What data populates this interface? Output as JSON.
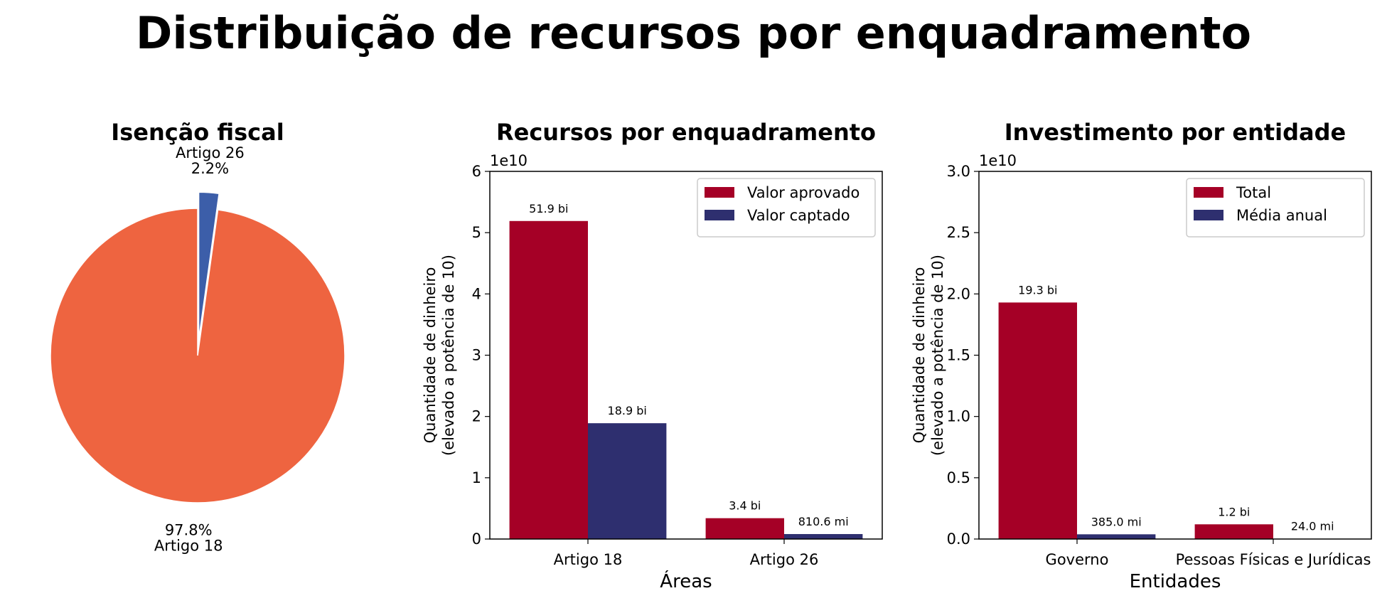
{
  "title": "Distribuição de recursos por enquadramento",
  "colors": {
    "pie_large": "#ee6440",
    "pie_small": "#3c5ea9",
    "series_red": "#a50026",
    "series_blue": "#2e2f6f"
  },
  "chart_data": [
    {
      "type": "pie",
      "title": "Isenção fiscal",
      "slices": [
        {
          "label": "Artigo 18",
          "value": 97.8,
          "pct_label": "97.8%",
          "color": "#ee6440"
        },
        {
          "label": "Artigo 26",
          "value": 2.2,
          "pct_label": "2.2%",
          "color": "#3c5ea9"
        }
      ]
    },
    {
      "type": "bar",
      "title": "Recursos por enquadramento",
      "xlabel": "Áreas",
      "ylabel": [
        "Quantidade de dinheiro",
        "(elevado a potência de 10)"
      ],
      "offset_label": "1e10",
      "categories": [
        "Artigo 18",
        "Artigo 26"
      ],
      "ylim": [
        0,
        6
      ],
      "yticks": [
        "0",
        "1",
        "2",
        "3",
        "4",
        "5",
        "6"
      ],
      "legend_position": "top-right",
      "series": [
        {
          "name": "Valor aprovado",
          "values": [
            5.19,
            0.34
          ],
          "labels": [
            "51.9 bi",
            "3.4 bi"
          ],
          "color": "#a50026"
        },
        {
          "name": "Valor captado",
          "values": [
            1.89,
            0.08106
          ],
          "labels": [
            "18.9 bi",
            "810.6 mi"
          ],
          "color": "#2e2f6f"
        }
      ]
    },
    {
      "type": "bar",
      "title": "Investimento por entidade",
      "xlabel": "Entidades",
      "ylabel": [
        "Quantidade de dinheiro",
        "(elevado a potência de 10)"
      ],
      "offset_label": "1e10",
      "categories": [
        "Governo",
        "Pessoas Físicas e Jurídicas"
      ],
      "ylim": [
        0,
        3
      ],
      "yticks": [
        "0.0",
        "0.5",
        "1.0",
        "1.5",
        "2.0",
        "2.5",
        "3.0"
      ],
      "legend_position": "top-right",
      "series": [
        {
          "name": "Total",
          "values": [
            1.93,
            0.12
          ],
          "labels": [
            "19.3 bi",
            "1.2 bi"
          ],
          "color": "#a50026"
        },
        {
          "name": "Média anual",
          "values": [
            0.0385,
            0.0024
          ],
          "labels": [
            "385.0 mi",
            "24.0 mi"
          ],
          "color": "#2e2f6f"
        }
      ]
    }
  ]
}
